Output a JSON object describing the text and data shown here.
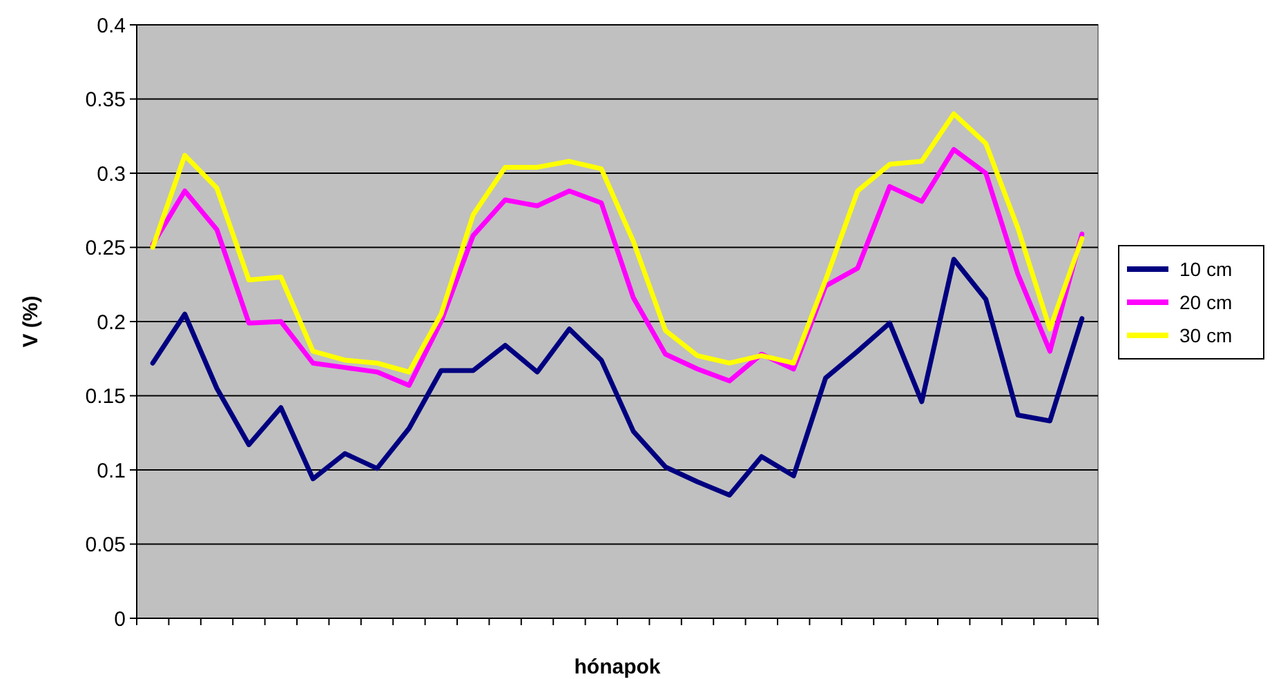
{
  "chart_data": {
    "type": "line",
    "xlabel": "hónapok",
    "ylabel": "V (%)",
    "categories": [
      null,
      null,
      null,
      null,
      null,
      null,
      null,
      null,
      null,
      null,
      null,
      null,
      null,
      null,
      null,
      null,
      null,
      null,
      null,
      null,
      null,
      null,
      null,
      null,
      null,
      null,
      null,
      null,
      null,
      null
    ],
    "series": [
      {
        "name": "10 cm",
        "color": "#000080",
        "values": [
          0.172,
          0.205,
          0.155,
          0.117,
          0.142,
          0.094,
          0.111,
          0.101,
          0.128,
          0.167,
          0.167,
          0.184,
          0.166,
          0.195,
          0.174,
          0.126,
          0.102,
          0.092,
          0.083,
          0.109,
          0.096,
          0.162,
          0.18,
          0.199,
          0.146,
          0.242,
          0.215,
          0.137,
          0.133,
          0.202
        ]
      },
      {
        "name": "20 cm",
        "color": "#ff00ff",
        "values": [
          0.252,
          0.288,
          0.262,
          0.199,
          0.2,
          0.172,
          0.169,
          0.166,
          0.157,
          0.2,
          0.258,
          0.282,
          0.278,
          0.288,
          0.28,
          0.216,
          0.178,
          0.168,
          0.16,
          0.178,
          0.168,
          0.224,
          0.236,
          0.291,
          0.281,
          0.316,
          0.3,
          0.232,
          0.18,
          0.259
        ]
      },
      {
        "name": "30 cm",
        "color": "#ffff00",
        "values": [
          0.25,
          0.312,
          0.29,
          0.228,
          0.23,
          0.18,
          0.174,
          0.172,
          0.166,
          0.205,
          0.272,
          0.304,
          0.304,
          0.308,
          0.303,
          0.254,
          0.194,
          0.177,
          0.172,
          0.177,
          0.172,
          0.228,
          0.288,
          0.306,
          0.308,
          0.34,
          0.32,
          0.263,
          0.195,
          0.256
        ]
      }
    ],
    "ylim": [
      0,
      0.4
    ],
    "yticks": [
      0,
      0.05,
      0.1,
      0.15,
      0.2,
      0.25,
      0.3,
      0.35,
      0.4
    ],
    "grid": "y",
    "legend": "right",
    "marker": "none",
    "line_style": "solid"
  }
}
